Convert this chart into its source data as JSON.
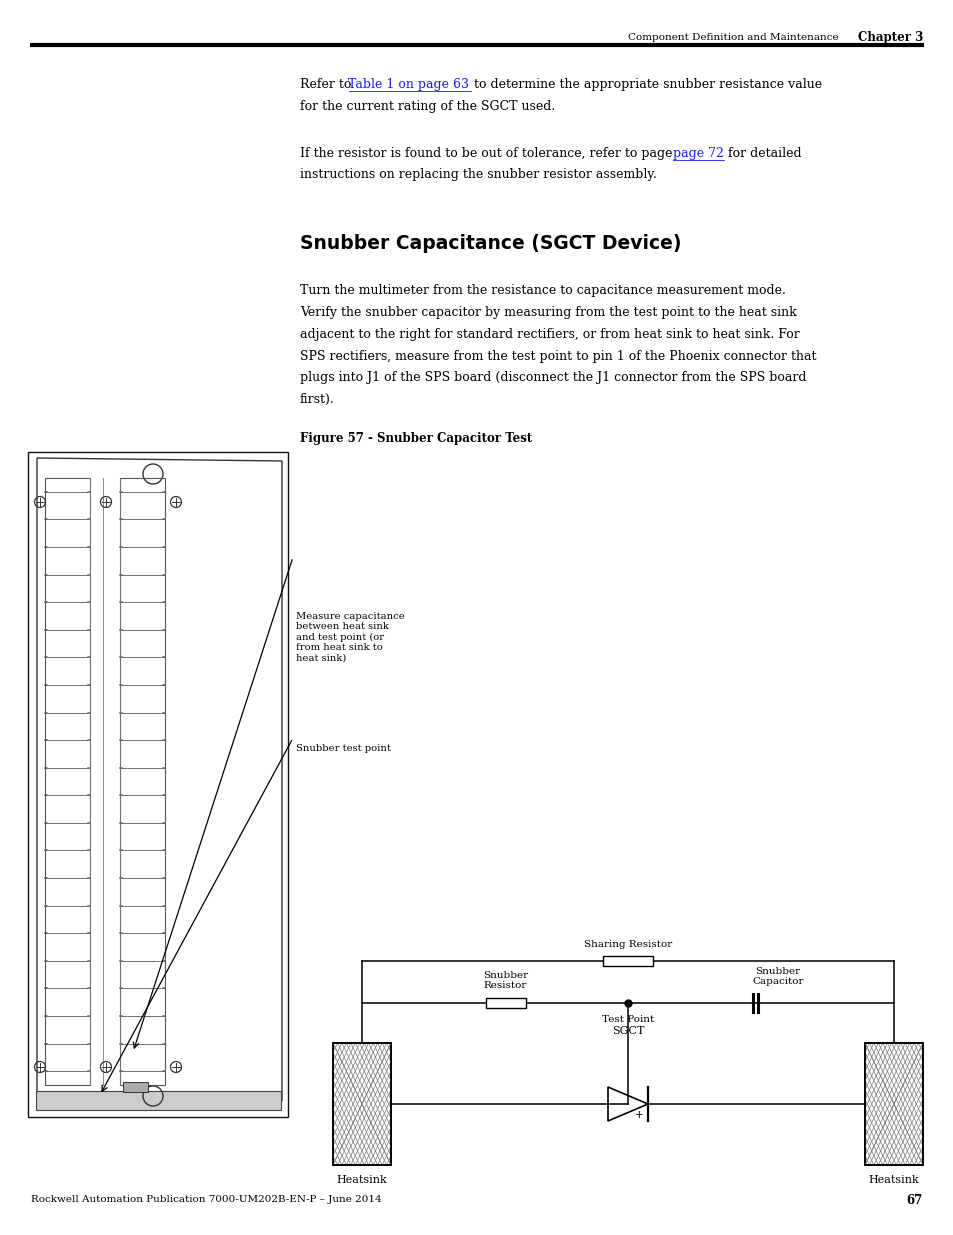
{
  "page_width": 9.54,
  "page_height": 12.35,
  "bg_color": "#ffffff",
  "header_text": "Component Definition and Maintenance",
  "header_chapter": "Chapter 3",
  "footer_text": "Rockwell Automation Publication 7000-UM202B-EN-P – June 2014",
  "footer_page": "67",
  "section_heading": "Snubber Capacitance (SGCT Device)",
  "para1_pre": "Refer to ",
  "para1_link": "Table 1 on page 63",
  "para1_post": " to determine the appropriate snubber resistance value",
  "para1_line2": "for the current rating of the SGCT used.",
  "para2_pre": "If the resistor is found to be out of tolerance, refer to page ",
  "para2_link": "page 72",
  "para2_post": " for detailed",
  "para2_line2": "instructions on replacing the snubber resistor assembly.",
  "body_lines": [
    "Turn the multimeter from the resistance to capacitance measurement mode.",
    "Verify the snubber capacitor by measuring from the test point to the heat sink",
    "adjacent to the right for standard rectifiers, or from heat sink to heat sink. For",
    "SPS rectifiers, measure from the test point to pin 1 of the Phoenix connector that",
    "plugs into J1 of the SPS board (disconnect the J1 connector from the SPS board",
    "first)."
  ],
  "fig_caption": "Figure 57 - Snubber Capacitor Test",
  "callout1": "Measure capacitance\nbetween heat sink\nand test point (or\nfrom heat sink to\nheat sink)",
  "callout2": "Snubber test point",
  "label_sharing_resistor": "Sharing Resistor",
  "label_snubber_resistor": "Snubber\nResistor",
  "label_snubber_capacitor": "Snubber\nCapacitor",
  "label_test_point": "Test Point",
  "label_sgct": "SGCT",
  "label_heatsink_left": "Heatsink",
  "label_heatsink_right": "Heatsink",
  "text_color": "#000000",
  "link_color": "#1a1aee"
}
